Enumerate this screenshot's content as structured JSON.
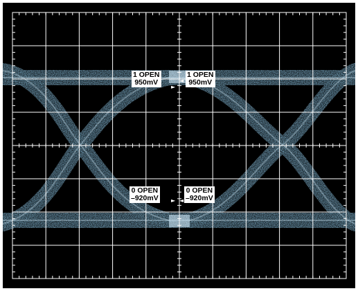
{
  "screen": {
    "background_color": "#000000",
    "grid_color": "#ffffff",
    "trace_color": "#7fb3cf",
    "trace_highlight": "#cfe8f6"
  },
  "readouts": {
    "top_left": {
      "label": "1 OPEN",
      "value": "950mV"
    },
    "top_right": {
      "label": "1 OPEN",
      "value": "950mV"
    },
    "bottom_left": {
      "label": "0 OPEN",
      "value": "–920mV"
    },
    "bottom_right": {
      "label": "0 OPEN",
      "value": "–920mV"
    }
  },
  "markers": {
    "top_left_icon": "arrow-right-icon",
    "top_right_icon": "arrow-left-icon",
    "bottom_left_icon": "arrow-right-icon",
    "bottom_right_icon": "arrow-left-icon"
  }
}
